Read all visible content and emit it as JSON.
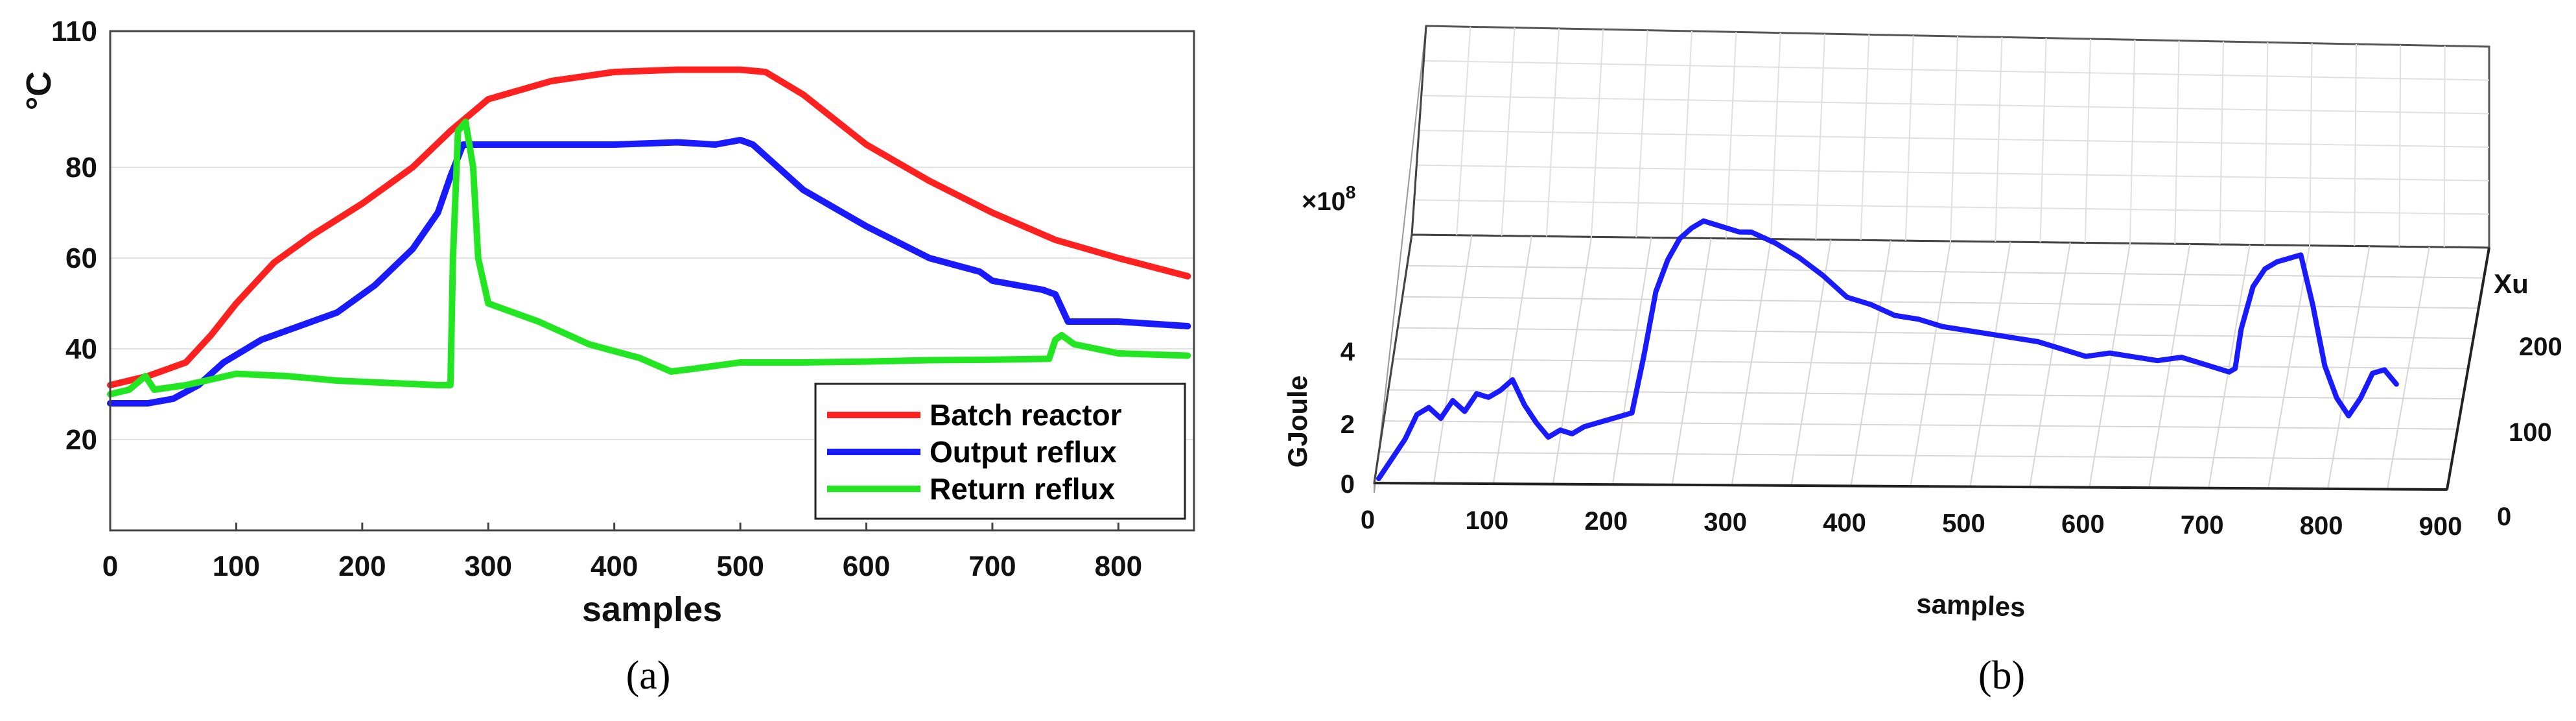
{
  "chart_data": [
    {
      "type": "line",
      "caption": "(a)",
      "xlabel": "samples",
      "ylabel": "°C",
      "xlim": [
        0,
        860
      ],
      "ylim": [
        0,
        110
      ],
      "xticks": [
        "0",
        "100",
        "200",
        "300",
        "400",
        "500",
        "600",
        "700",
        "800"
      ],
      "yticks": [
        "20",
        "40",
        "60",
        "80",
        "110"
      ],
      "legend_position": "bottom-right",
      "grid": "horizontal",
      "series": [
        {
          "name": "Batch reactor",
          "color": "#ff2020",
          "x": [
            0,
            30,
            60,
            80,
            100,
            130,
            160,
            200,
            240,
            270,
            300,
            350,
            400,
            450,
            500,
            520,
            550,
            600,
            650,
            700,
            750,
            800,
            855
          ],
          "y": [
            32,
            34,
            37,
            43,
            50,
            59,
            65,
            72,
            80,
            88,
            95,
            99,
            101,
            101.5,
            101.5,
            101,
            96,
            85,
            77,
            70,
            64,
            60,
            56
          ]
        },
        {
          "name": "Output reflux",
          "color": "#1a1aff",
          "x": [
            0,
            30,
            50,
            70,
            90,
            120,
            150,
            180,
            210,
            240,
            260,
            270,
            280,
            300,
            350,
            400,
            450,
            480,
            500,
            510,
            550,
            600,
            650,
            690,
            700,
            720,
            740,
            750,
            760,
            800,
            855
          ],
          "y": [
            28,
            28,
            29,
            32,
            37,
            42,
            45,
            48,
            54,
            62,
            70,
            78,
            85,
            85,
            85,
            85,
            85.5,
            85,
            86,
            85,
            75,
            67,
            60,
            57,
            55,
            54,
            53,
            52,
            46,
            46,
            45
          ]
        },
        {
          "name": "Return reflux",
          "color": "#22e622",
          "x": [
            0,
            15,
            28,
            35,
            60,
            100,
            140,
            180,
            220,
            260,
            270,
            272,
            276,
            282,
            288,
            292,
            300,
            340,
            380,
            420,
            445,
            460,
            500,
            550,
            600,
            650,
            700,
            745,
            750,
            755,
            765,
            800,
            855
          ],
          "y": [
            30,
            31,
            34,
            31,
            32,
            34.5,
            34,
            33,
            32.5,
            32,
            32,
            60,
            88,
            90,
            80,
            60,
            50,
            46,
            41,
            38,
            35,
            35.5,
            37,
            37,
            37.2,
            37.5,
            37.6,
            37.8,
            42,
            43,
            41,
            39,
            38.5
          ]
        }
      ]
    },
    {
      "type": "line",
      "projection": "3d",
      "caption": "(b)",
      "xlabel": "samples",
      "ylabel": "Xu",
      "zlabel": "GJoule",
      "zscale_label": "×10^8",
      "zscale_base": "×10",
      "zscale_exp": "8",
      "xticks": [
        "0",
        "100",
        "200",
        "300",
        "400",
        "500",
        "600",
        "700",
        "800",
        "900"
      ],
      "yticks": [
        "0",
        "100",
        "200"
      ],
      "zticks": [
        "0",
        "2",
        "4"
      ],
      "xlim": [
        0,
        900
      ],
      "zlim": [
        0,
        8
      ],
      "series": [
        {
          "color": "#1a1aff",
          "x": [
            0,
            10,
            20,
            30,
            40,
            50,
            60,
            70,
            80,
            90,
            100,
            110,
            120,
            130,
            140,
            150,
            160,
            170,
            180,
            190,
            200,
            210,
            220,
            230,
            240,
            250,
            260,
            270,
            280,
            290,
            300,
            320,
            340,
            360,
            380,
            400,
            420,
            440,
            460,
            480,
            500,
            520,
            540,
            560,
            580,
            600,
            620,
            640,
            660,
            680,
            700,
            705,
            710,
            720,
            730,
            740,
            750,
            760,
            770,
            780,
            790,
            800,
            810,
            820,
            830,
            840
          ],
          "z": [
            0.1,
            1.2,
            1.9,
            2.1,
            1.8,
            2.3,
            2.0,
            2.5,
            2.4,
            2.6,
            2.9,
            2.2,
            1.7,
            1.3,
            1.5,
            1.4,
            1.6,
            1.7,
            1.8,
            1.9,
            2.0,
            3.6,
            5.4,
            6.3,
            6.9,
            7.2,
            7.4,
            7.3,
            7.2,
            7.1,
            7.1,
            6.8,
            6.4,
            5.9,
            5.3,
            5.1,
            4.8,
            4.7,
            4.5,
            4.4,
            4.3,
            4.2,
            4.1,
            3.9,
            3.7,
            3.8,
            3.7,
            3.6,
            3.7,
            3.5,
            3.3,
            3.4,
            4.5,
            5.7,
            6.2,
            6.4,
            6.5,
            6.6,
            5.2,
            3.5,
            2.6,
            2.1,
            2.6,
            3.3,
            3.4,
            3.0
          ]
        }
      ]
    }
  ]
}
